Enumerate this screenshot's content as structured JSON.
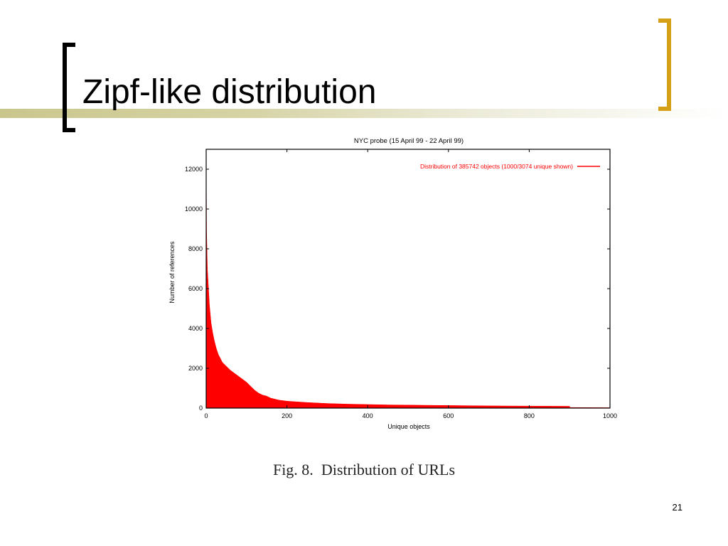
{
  "slide": {
    "title": "Zipf-like distribution",
    "caption_fig": "Fig. 8.",
    "caption_text": "Distribution of URLs",
    "page_number": "21",
    "bracket_left_color": "#000000",
    "bracket_right_color": "#d4a017",
    "bar_color": "#c9c68c"
  },
  "chart_data": {
    "type": "area",
    "title": "NYC probe (15 April 99 - 22 April 99)",
    "xlabel": "Unique objects",
    "ylabel": "Number of references",
    "xlim": [
      0,
      1000
    ],
    "ylim": [
      0,
      13000
    ],
    "xticks": [
      0,
      200,
      400,
      600,
      800,
      1000
    ],
    "yticks": [
      0,
      2000,
      4000,
      6000,
      8000,
      10000,
      12000
    ],
    "grid": false,
    "legend_position": "top-right",
    "series": [
      {
        "name": "Distribution of 385742 objects (1000/3074 unique shown)",
        "color": "#ff0000",
        "x": [
          0,
          1,
          2,
          3,
          5,
          8,
          12,
          16,
          20,
          25,
          30,
          40,
          50,
          60,
          70,
          80,
          90,
          100,
          110,
          120,
          130,
          140,
          150,
          160,
          180,
          200,
          220,
          250,
          300,
          350,
          400,
          450,
          500,
          550,
          600,
          700,
          800,
          900,
          901,
          1000
        ],
        "y": [
          12800,
          8900,
          8000,
          7000,
          6300,
          5200,
          4300,
          3800,
          3400,
          3000,
          2700,
          2300,
          2100,
          1900,
          1750,
          1600,
          1450,
          1300,
          1100,
          900,
          750,
          650,
          600,
          500,
          400,
          350,
          320,
          280,
          230,
          200,
          180,
          160,
          150,
          140,
          130,
          110,
          100,
          90,
          30,
          20
        ]
      }
    ]
  }
}
